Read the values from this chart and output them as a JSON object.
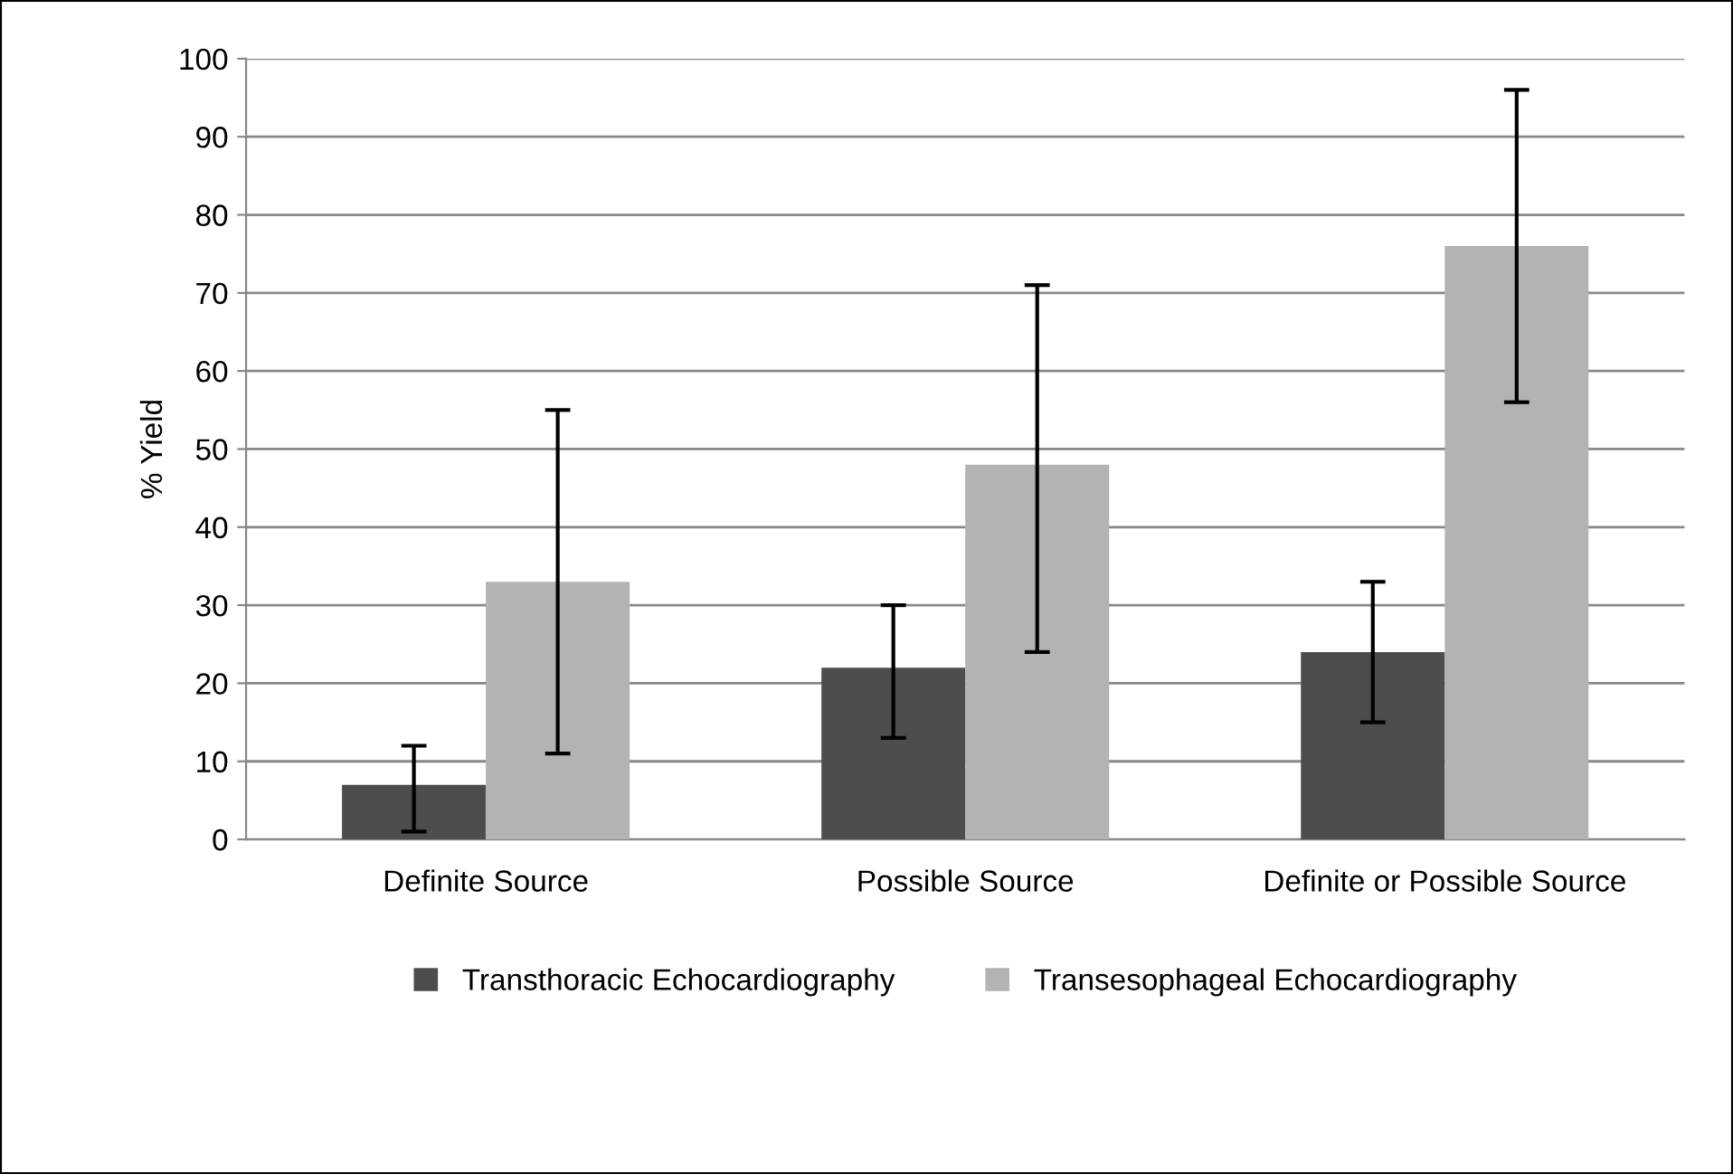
{
  "chart_data": {
    "type": "bar",
    "ylabel": "% Yield",
    "categories": [
      "Definite Source",
      "Possible Source",
      "Definite or Possible Source"
    ],
    "series": [
      {
        "name": "Transthoracic Echocardiography",
        "color": "#4d4d4d",
        "values": [
          7,
          22,
          24
        ],
        "errors": [
          [
            1,
            12
          ],
          [
            13,
            30
          ],
          [
            15,
            33
          ]
        ]
      },
      {
        "name": "Transesophageal Echocardiography",
        "color": "#b3b3b3",
        "values": [
          33,
          48,
          76
        ],
        "errors": [
          [
            11,
            55
          ],
          [
            24,
            71
          ],
          [
            56,
            96
          ]
        ]
      }
    ],
    "ylim": [
      0,
      100
    ],
    "yticks": [
      0,
      10,
      20,
      30,
      40,
      50,
      60,
      70,
      80,
      90,
      100
    ],
    "grid": "y",
    "legend": "bottom"
  }
}
